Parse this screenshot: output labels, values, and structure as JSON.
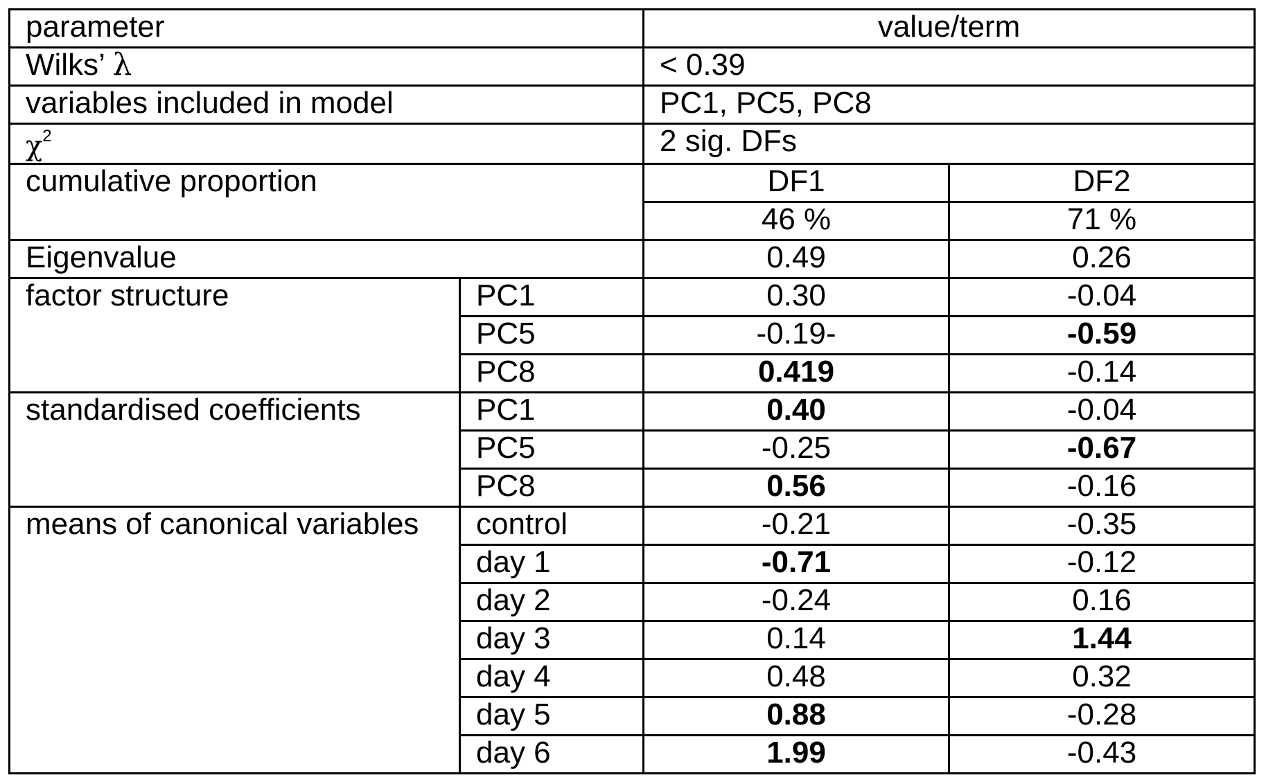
{
  "header": {
    "parameter": "parameter",
    "value": "value/term"
  },
  "wilks": {
    "label": "Wilks’",
    "symbol": "λ",
    "value": "< 0.39"
  },
  "variables": {
    "label": "variables included in model",
    "value": "PC1, PC5, PC8"
  },
  "chi2": {
    "symbol": "χ",
    "superscript": "2",
    "value": "2 sig. DFs"
  },
  "cumulative": {
    "label": "cumulative proportion",
    "df1": "DF1",
    "df2": "DF2",
    "df1_value": "46 %",
    "df2_value": "71 %"
  },
  "eigenvalue": {
    "label": "Eigenvalue",
    "df1": "0.49",
    "df2": "0.26"
  },
  "factor_structure": {
    "label": "factor structure",
    "rows": [
      {
        "name": "PC1",
        "df1": "0.30",
        "df2": "-0.04"
      },
      {
        "name": "PC5",
        "df1": "-0.19-",
        "df2": "-0.59"
      },
      {
        "name": "PC8",
        "df1": "0.419",
        "df2": "-0.14"
      }
    ]
  },
  "standardised": {
    "label": "standardised coefficients",
    "rows": [
      {
        "name": "PC1",
        "df1": "0.40",
        "df2": "-0.04"
      },
      {
        "name": "PC5",
        "df1": "-0.25",
        "df2": "-0.67"
      },
      {
        "name": "PC8",
        "df1": "0.56",
        "df2": "-0.16"
      }
    ]
  },
  "means": {
    "label": "means of canonical variables",
    "rows": [
      {
        "name": "control",
        "df1": "-0.21",
        "df2": "-0.35"
      },
      {
        "name": "day 1",
        "df1": "-0.71",
        "df2": "-0.12"
      },
      {
        "name": "day 2",
        "df1": "-0.24",
        "df2": "0.16"
      },
      {
        "name": "day 3",
        "df1": "0.14",
        "df2": "1.44"
      },
      {
        "name": "day 4",
        "df1": "0.48",
        "df2": "0.32"
      },
      {
        "name": "day 5",
        "df1": "0.88",
        "df2": "-0.28"
      },
      {
        "name": "day 6",
        "df1": "1.99",
        "df2": "-0.43"
      }
    ]
  }
}
